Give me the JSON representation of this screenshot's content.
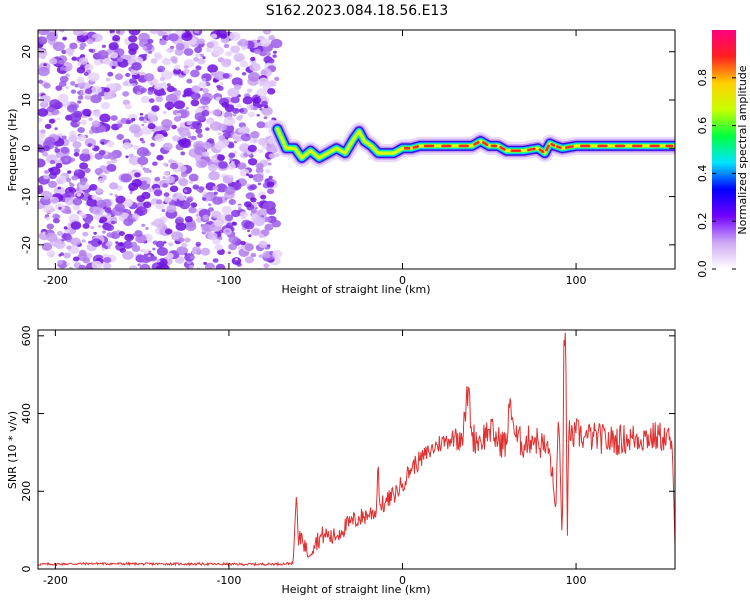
{
  "title": "S162.2023.084.18.56.E13",
  "chart_data": [
    {
      "type": "heatmap",
      "xlabel": "Height of straight line (km)",
      "ylabel": "Frequency (Hz)",
      "xlim": [
        -210,
        157
      ],
      "ylim": [
        -25,
        24.5
      ],
      "xticks": [
        -200,
        -100,
        0,
        100
      ],
      "yticks": [
        -20,
        -10,
        0,
        10,
        20
      ],
      "xtick_labels": [
        "-200",
        "-100",
        "0",
        "100"
      ],
      "ytick_labels": [
        "-20",
        "-10",
        "0",
        "10",
        "20"
      ],
      "noise_region_x": [
        -210,
        -72
      ],
      "ridge": {
        "x": [
          -72,
          -67,
          -62,
          -58,
          -53,
          -48,
          -43,
          -38,
          -33,
          -28,
          -25,
          -22,
          -18,
          -14,
          -10,
          -5,
          0,
          5,
          10,
          20,
          30,
          40,
          45,
          50,
          55,
          60,
          70,
          78,
          82,
          85,
          88,
          92,
          100,
          110,
          120,
          130,
          140,
          150,
          157
        ],
        "y": [
          4,
          0,
          0,
          -2,
          -0.5,
          -2,
          -1,
          0,
          -1,
          2,
          3.5,
          1.5,
          0.5,
          -1,
          -1,
          -1,
          0,
          0,
          0.5,
          0.5,
          0.5,
          0.5,
          1.5,
          0.5,
          0.5,
          -0.5,
          -0.5,
          0,
          -1,
          1,
          0.5,
          0,
          0.5,
          0.5,
          0.5,
          0.5,
          0.5,
          0.5,
          0.5
        ]
      },
      "colorbar": {
        "label": "Normalized spectral amplitude",
        "range": [
          0,
          1
        ],
        "ticks": [
          0,
          0.2,
          0.4,
          0.6,
          0.8
        ],
        "tick_labels": [
          "0.0",
          "0.2",
          "0.4",
          "0.6",
          "0.8"
        ],
        "colors": [
          "#ffffff",
          "#cfa8f5",
          "#7000ff",
          "#0000ff",
          "#00e5ff",
          "#00ff40",
          "#c8ff00",
          "#ffd000",
          "#ff2020",
          "#ff0080"
        ]
      }
    },
    {
      "type": "line",
      "xlabel": "Height of straight line (km)",
      "ylabel": "SNR (10 * v/v)",
      "xlim": [
        -210,
        157
      ],
      "ylim": [
        0,
        615
      ],
      "xticks": [
        -200,
        -100,
        0,
        100
      ],
      "yticks": [
        0,
        200,
        400,
        600
      ],
      "xtick_labels": [
        "-200",
        "-100",
        "0",
        "100"
      ],
      "ytick_labels": [
        "0",
        "200",
        "400",
        "600"
      ],
      "color": "#e03030",
      "series": [
        {
          "x": [
            -210,
            -180,
            -150,
            -120,
            -90,
            -70,
            -63,
            -61,
            -60,
            -58,
            -55,
            -50,
            -45,
            -40,
            -35,
            -30,
            -25,
            -20,
            -15,
            -14,
            -13,
            -10,
            -5,
            0,
            5,
            10,
            15,
            20,
            25,
            30,
            35,
            38,
            40,
            45,
            50,
            55,
            60,
            62,
            65,
            70,
            75,
            80,
            85,
            88,
            90,
            92,
            93,
            94,
            95,
            96,
            97,
            100,
            105,
            110,
            120,
            130,
            140,
            150,
            155,
            157
          ],
          "y": [
            12,
            14,
            13,
            13,
            12,
            13,
            15,
            200,
            60,
            90,
            40,
            70,
            90,
            80,
            100,
            120,
            130,
            140,
            150,
            280,
            160,
            170,
            190,
            220,
            260,
            280,
            300,
            320,
            330,
            340,
            350,
            470,
            340,
            330,
            360,
            330,
            320,
            440,
            340,
            320,
            340,
            320,
            300,
            150,
            380,
            60,
            600,
            610,
            80,
            400,
            330,
            350,
            340,
            340,
            330,
            335,
            340,
            340,
            330,
            60
          ]
        }
      ]
    }
  ]
}
